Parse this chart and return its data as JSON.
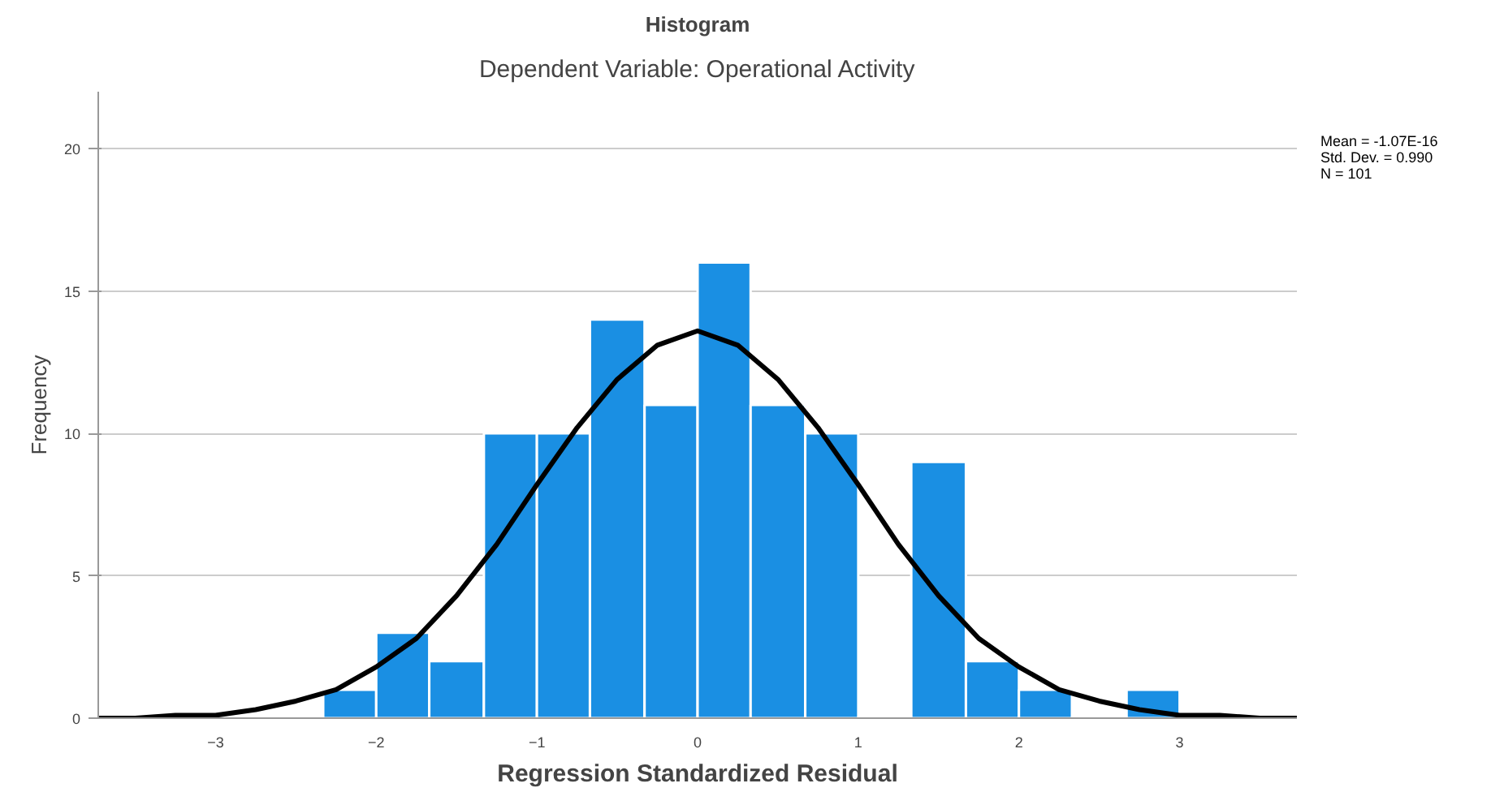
{
  "chart_data": {
    "type": "histogram",
    "title": "Histogram",
    "subtitle": "Dependent Variable: Operational Activity",
    "xlabel": "Regression Standardized Residual",
    "ylabel": "Frequency",
    "bins": [
      -2.33,
      -2.0,
      -1.67,
      -1.33,
      -1.0,
      -0.67,
      -0.33,
      0,
      0.33,
      0.67,
      1.0,
      1.33,
      1.67,
      2.0,
      2.33,
      2.67,
      3.0
    ],
    "values": [
      1,
      3,
      2,
      10,
      10,
      14,
      11,
      16,
      11,
      10,
      0,
      9,
      2,
      1,
      0,
      1
    ],
    "color": "#1a8fe3",
    "series": [
      {
        "type": "line",
        "color": "#000000",
        "x": [
          -3.73,
          -3.5,
          -3.25,
          -3.0,
          -2.75,
          -2.5,
          -2.25,
          -2.0,
          -1.75,
          -1.5,
          -1.25,
          -1.0,
          -0.75,
          -0.5,
          -0.25,
          0,
          0.25,
          0.5,
          0.75,
          1.0,
          1.25,
          1.5,
          1.75,
          2.0,
          2.25,
          2.5,
          2.75,
          3.0,
          3.25,
          3.5,
          3.73
        ],
        "values": [
          0.0,
          0.0,
          0.1,
          0.1,
          0.3,
          0.6,
          1.0,
          1.8,
          2.8,
          4.3,
          6.1,
          8.2,
          10.2,
          11.9,
          13.1,
          13.6,
          13.1,
          11.9,
          10.2,
          8.2,
          6.1,
          4.3,
          2.8,
          1.8,
          1.0,
          0.6,
          0.3,
          0.1,
          0.1,
          0.0,
          0.0
        ]
      }
    ],
    "xlim": [
      -3.73,
      3.73
    ],
    "xticks": [
      -3,
      -2,
      -1,
      0,
      1,
      2,
      3
    ],
    "ylim": [
      0,
      22
    ],
    "yticks": [
      0,
      5,
      10,
      15,
      20
    ],
    "grid": "y",
    "annotations": [
      "Mean = -1.07E-16",
      "Std. Dev. = 0.990",
      "N = 101"
    ]
  }
}
